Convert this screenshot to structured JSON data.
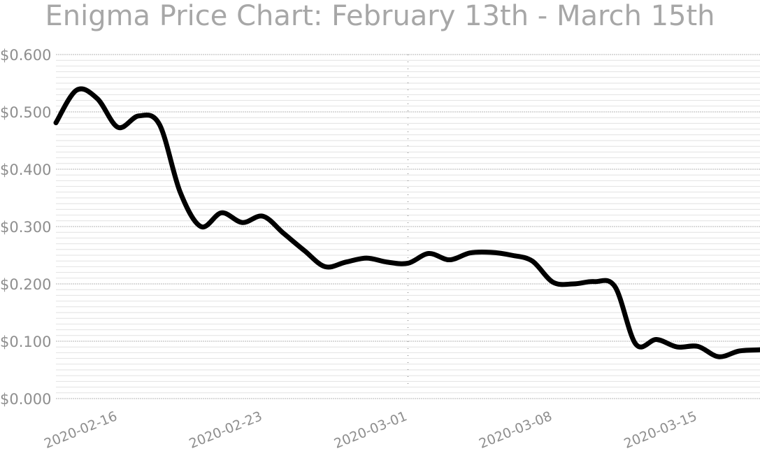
{
  "chart_data": {
    "type": "line",
    "title": "Enigma Price Chart: February 13th - March 15th",
    "xlabel": "",
    "ylabel": "",
    "ylim": [
      0,
      0.6
    ],
    "xlim": [
      "2020-02-13",
      "2020-03-18"
    ],
    "y_ticks": [
      {
        "value": 0.0,
        "label": "$0.000"
      },
      {
        "value": 0.1,
        "label": "$0.100"
      },
      {
        "value": 0.2,
        "label": "$0.200"
      },
      {
        "value": 0.3,
        "label": "$0.300"
      },
      {
        "value": 0.4,
        "label": "$0.400"
      },
      {
        "value": 0.5,
        "label": "$0.500"
      },
      {
        "value": 0.6,
        "label": "$0.600"
      }
    ],
    "x_ticks": [
      {
        "value": "2020-02-16",
        "label": "2020-02-16"
      },
      {
        "value": "2020-02-23",
        "label": "2020-02-23"
      },
      {
        "value": "2020-03-01",
        "label": "2020-03-01"
      },
      {
        "value": "2020-03-08",
        "label": "2020-03-08"
      },
      {
        "value": "2020-03-15",
        "label": "2020-03-15"
      }
    ],
    "grid": true,
    "line_color": "#000000",
    "series": [
      {
        "x": [
          "2020-02-13",
          "2020-02-14",
          "2020-02-15",
          "2020-02-16",
          "2020-02-17",
          "2020-02-18",
          "2020-02-19",
          "2020-02-20",
          "2020-02-21",
          "2020-02-22",
          "2020-02-23",
          "2020-02-24",
          "2020-02-25",
          "2020-02-26",
          "2020-02-27",
          "2020-02-28",
          "2020-02-29",
          "2020-03-01",
          "2020-03-02",
          "2020-03-03",
          "2020-03-04",
          "2020-03-05",
          "2020-03-06",
          "2020-03-07",
          "2020-03-08",
          "2020-03-09",
          "2020-03-10",
          "2020-03-11",
          "2020-03-12",
          "2020-03-13",
          "2020-03-14",
          "2020-03-15",
          "2020-03-16",
          "2020-03-17",
          "2020-03-18"
        ],
        "values": [
          0.481,
          0.538,
          0.523,
          0.473,
          0.493,
          0.478,
          0.36,
          0.3,
          0.324,
          0.307,
          0.318,
          0.288,
          0.258,
          0.23,
          0.238,
          0.245,
          0.238,
          0.236,
          0.253,
          0.242,
          0.254,
          0.255,
          0.25,
          0.24,
          0.203,
          0.2,
          0.204,
          0.195,
          0.095,
          0.103,
          0.09,
          0.091,
          0.073,
          0.083,
          0.085
        ]
      }
    ]
  }
}
